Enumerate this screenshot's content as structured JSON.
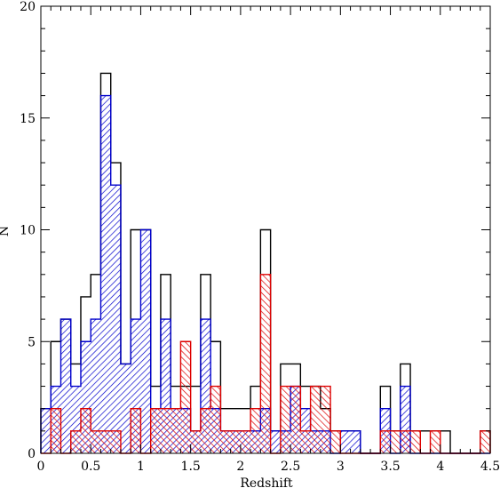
{
  "chart_data": {
    "type": "bar",
    "xlabel": "Redshift",
    "ylabel": "N",
    "xlim": [
      0,
      4.5
    ],
    "ylim": [
      0,
      20
    ],
    "bin_width": 0.1,
    "x_ticks": [
      "0",
      "0.5",
      "1",
      "1.5",
      "2",
      "2.5",
      "3",
      "3.5",
      "4",
      "4.5"
    ],
    "y_ticks": [
      "0",
      "5",
      "10",
      "15",
      "20"
    ],
    "bin_starts": [
      0.0,
      0.1,
      0.2,
      0.3,
      0.4,
      0.5,
      0.6,
      0.7,
      0.8,
      0.9,
      1.0,
      1.1,
      1.2,
      1.3,
      1.4,
      1.5,
      1.6,
      1.7,
      1.8,
      1.9,
      2.0,
      2.1,
      2.2,
      2.3,
      2.4,
      2.5,
      2.6,
      2.7,
      2.8,
      2.9,
      3.0,
      3.1,
      3.2,
      3.3,
      3.4,
      3.5,
      3.6,
      3.7,
      3.8,
      3.9,
      4.0,
      4.1,
      4.2,
      4.3,
      4.4
    ],
    "series": [
      {
        "color": "#000000",
        "fill": "none",
        "values": [
          2,
          5,
          6,
          4,
          7,
          8,
          17,
          13,
          4,
          10,
          10,
          3,
          8,
          3,
          3,
          3,
          8,
          5,
          2,
          2,
          2,
          3,
          10,
          1,
          4,
          4,
          3,
          3,
          2,
          1,
          1,
          1,
          0,
          0,
          3,
          1,
          4,
          1,
          1,
          1,
          1,
          0,
          0,
          0,
          1
        ]
      },
      {
        "color": "#0000cc",
        "fill": "hatch-diagonal",
        "values": [
          2,
          3,
          6,
          3,
          5,
          6,
          16,
          12,
          4,
          6,
          10,
          2,
          6,
          2,
          2,
          1,
          6,
          2,
          1,
          1,
          1,
          1,
          2,
          1,
          1,
          3,
          2,
          1,
          1,
          0,
          1,
          1,
          0,
          0,
          2,
          0,
          3,
          0,
          0,
          0,
          0,
          0,
          0,
          0,
          0
        ]
      },
      {
        "color": "#dd0000",
        "fill": "hatch-diagonal-reverse",
        "values": [
          0,
          2,
          0,
          1,
          2,
          1,
          1,
          1,
          0,
          2,
          0,
          2,
          2,
          2,
          5,
          1,
          2,
          3,
          1,
          1,
          1,
          2,
          8,
          0,
          3,
          3,
          1,
          3,
          3,
          1,
          0,
          0,
          0,
          0,
          1,
          1,
          1,
          1,
          0,
          1,
          0,
          0,
          0,
          0,
          1
        ]
      }
    ]
  }
}
